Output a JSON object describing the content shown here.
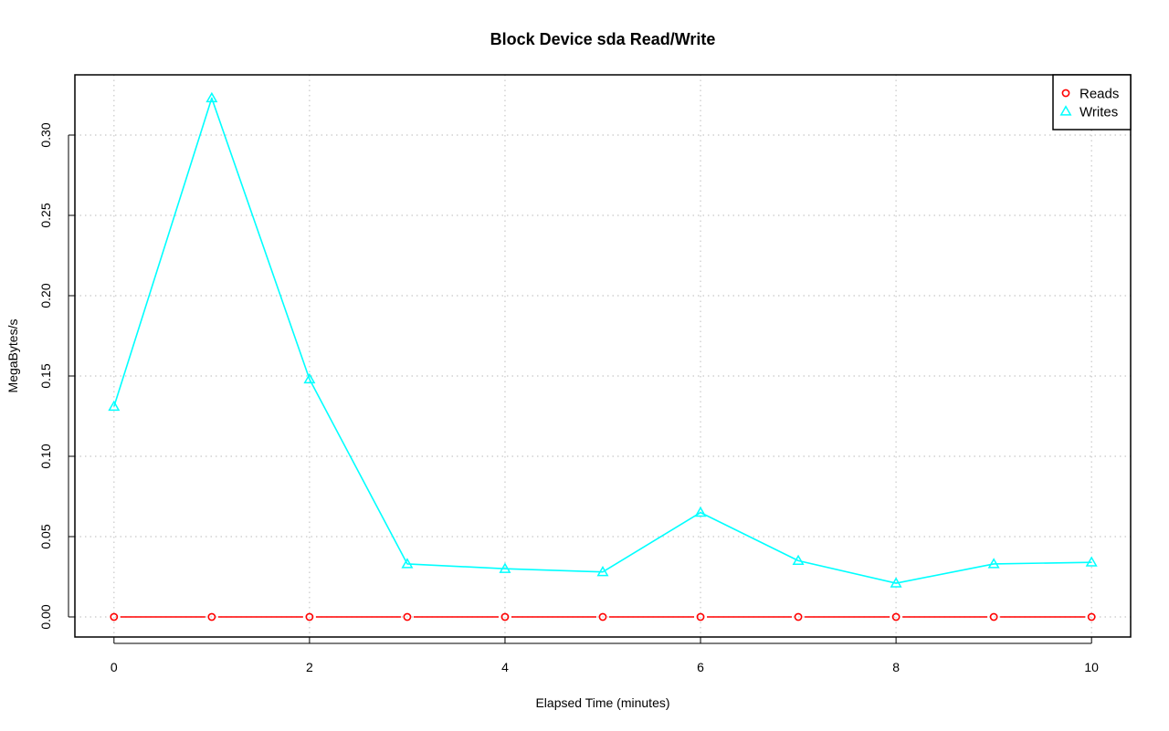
{
  "chart_data": {
    "type": "line",
    "title": "Block Device sda Read/Write",
    "xlabel": "Elapsed Time (minutes)",
    "ylabel": "MegaBytes/s",
    "xlim": [
      -0.4,
      10.4
    ],
    "ylim": [
      -0.0125,
      0.3375
    ],
    "x_ticks": [
      0,
      2,
      4,
      6,
      8,
      10
    ],
    "y_ticks": [
      0.0,
      0.05,
      0.1,
      0.15,
      0.2,
      0.25,
      0.3
    ],
    "y_tick_labels": [
      "0.00",
      "0.05",
      "0.10",
      "0.15",
      "0.20",
      "0.25",
      "0.30"
    ],
    "grid": true,
    "legend_position": "top-right",
    "x": [
      0,
      1,
      2,
      3,
      4,
      5,
      6,
      7,
      8,
      9,
      10
    ],
    "series": [
      {
        "name": "Reads",
        "marker": "circle",
        "color": "#ff0000",
        "values": [
          0,
          0,
          0,
          0,
          0,
          0,
          0,
          0,
          0,
          0,
          0
        ]
      },
      {
        "name": "Writes",
        "marker": "triangle",
        "color": "#00ffff",
        "values": [
          0.131,
          0.323,
          0.148,
          0.033,
          0.03,
          0.028,
          0.065,
          0.035,
          0.021,
          0.033,
          0.034
        ]
      }
    ]
  }
}
